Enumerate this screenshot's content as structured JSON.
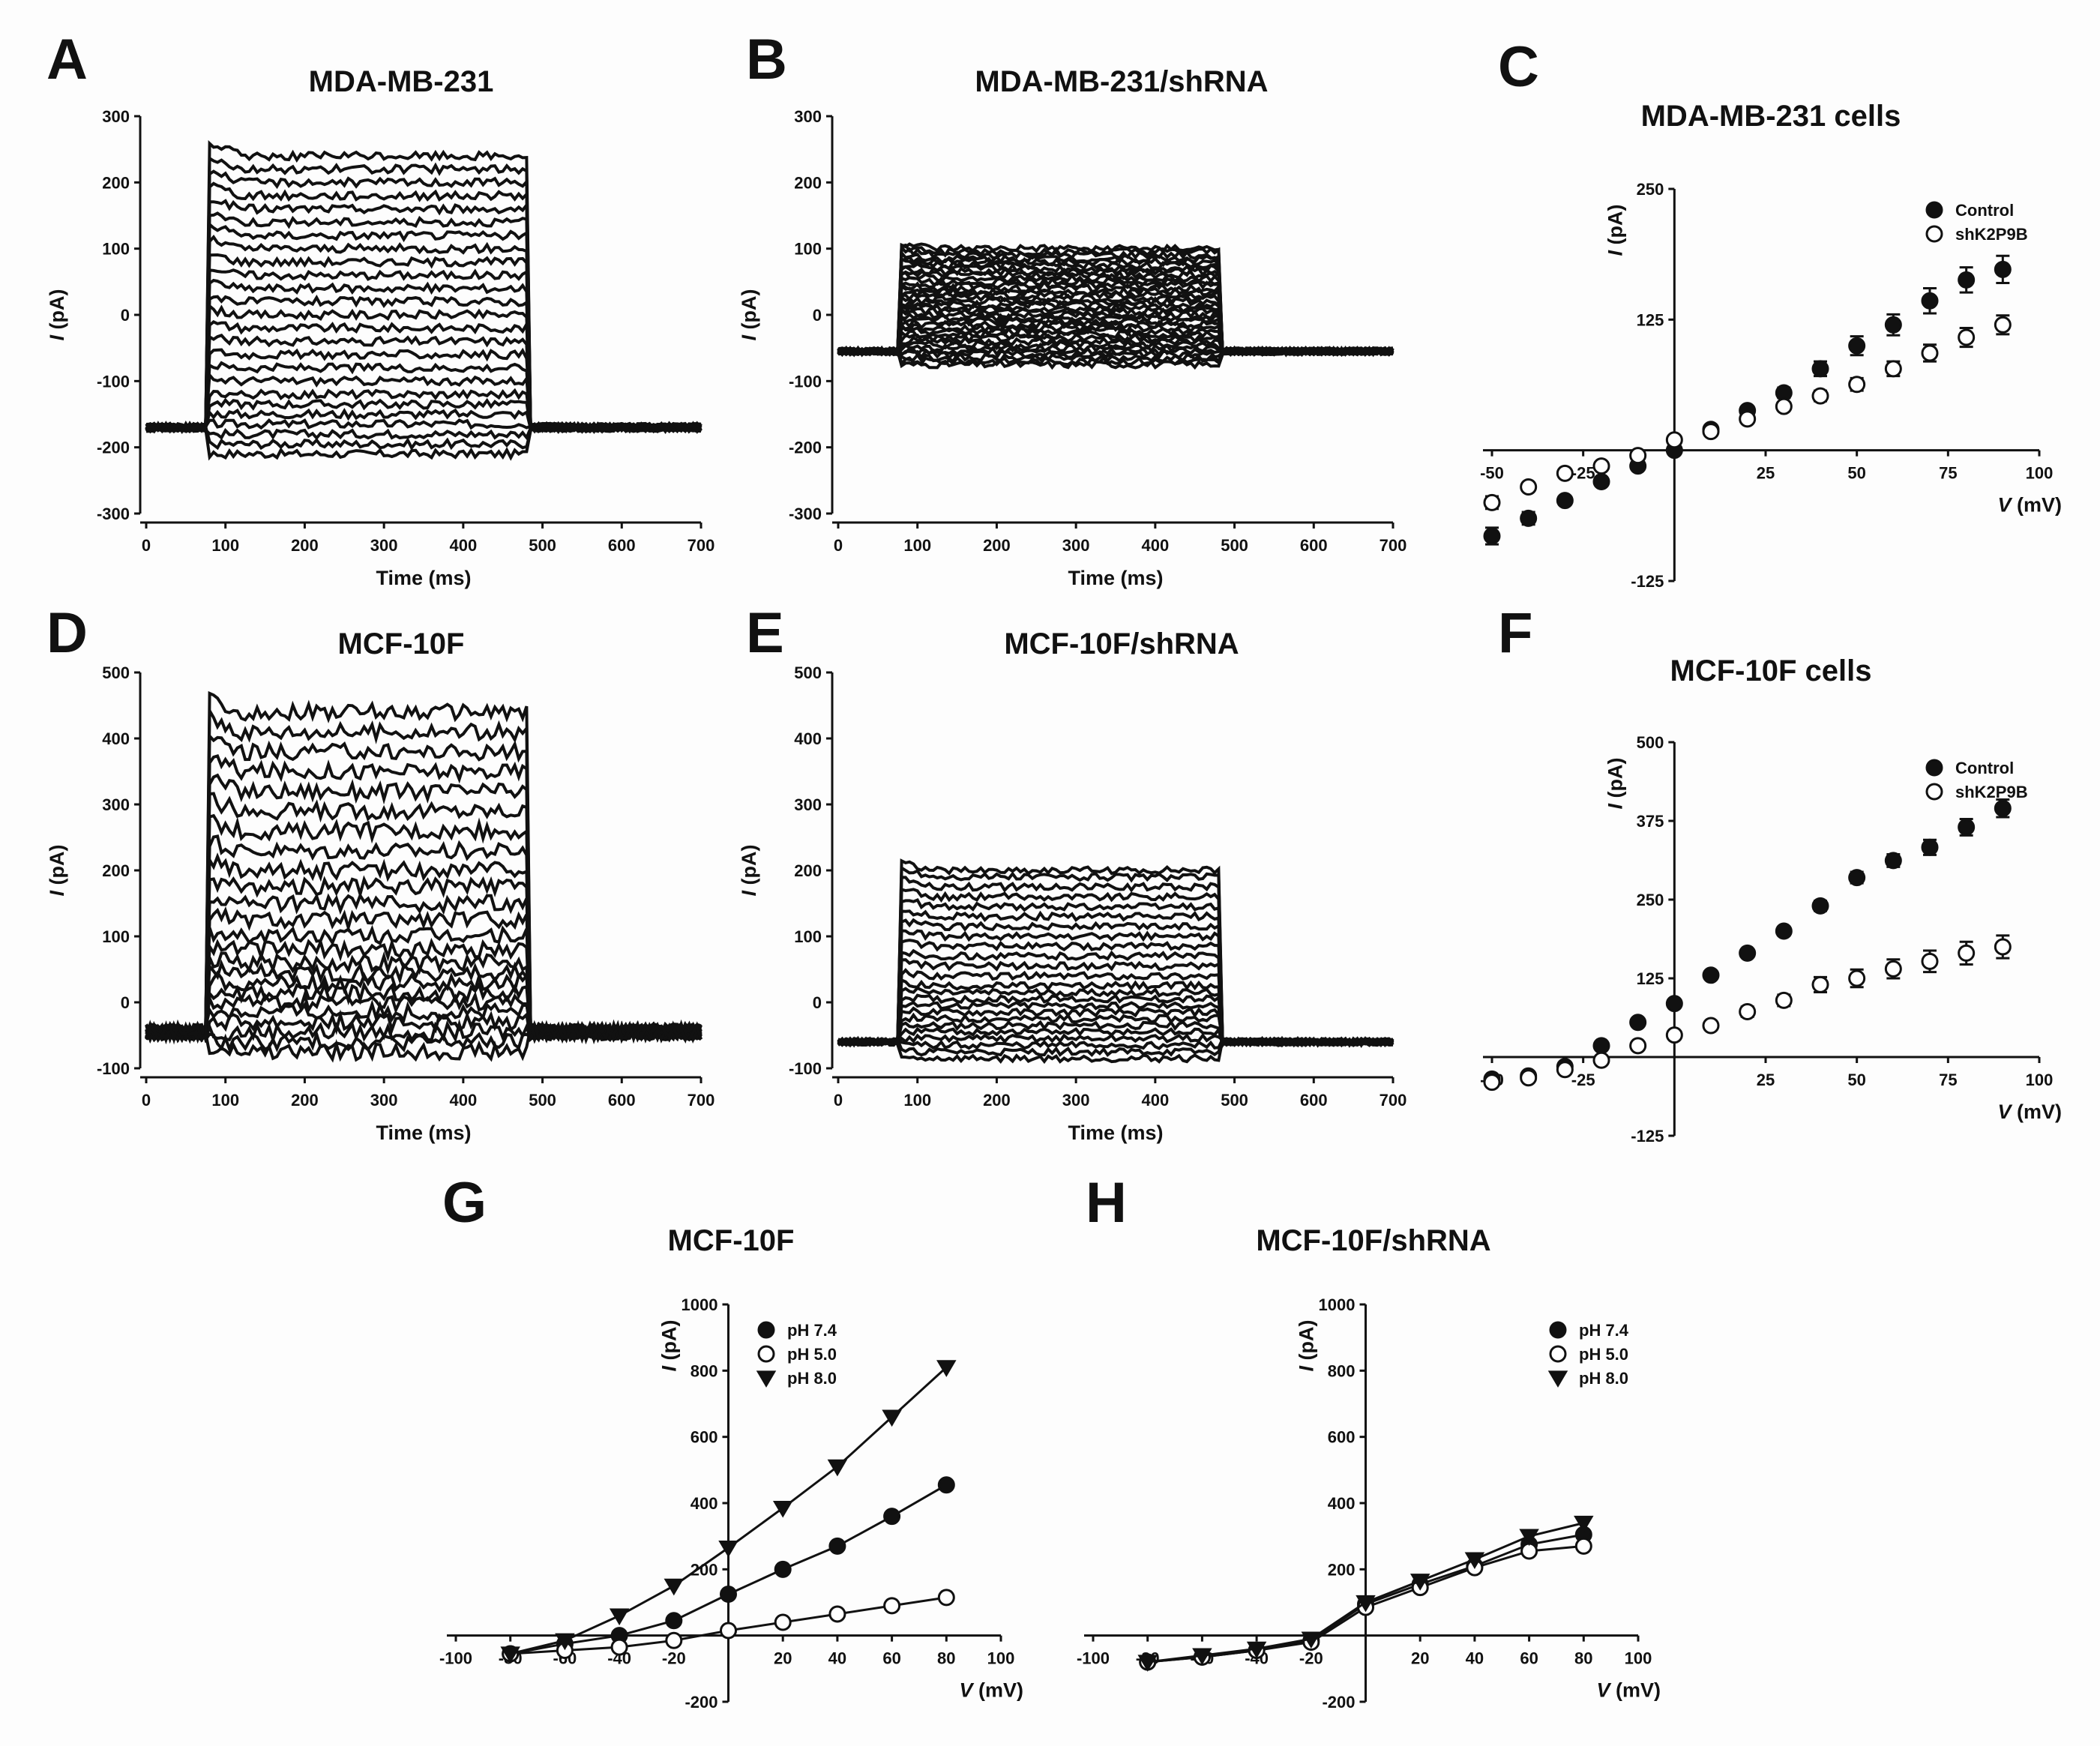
{
  "panel_labels": [
    "A",
    "B",
    "C",
    "D",
    "E",
    "F",
    "G",
    "H"
  ],
  "chart_data": [
    {
      "id": "A",
      "type": "line",
      "title": "MDA-MB-231",
      "xlabel": "Time (ms)",
      "ylabel_var": "I",
      "ylabel_unit": "(pA)",
      "xlim": [
        0,
        700
      ],
      "ylim": [
        -300,
        300
      ],
      "xticks": [
        "0",
        "100",
        "200",
        "300",
        "400",
        "500",
        "600",
        "700"
      ],
      "yticks": [
        "-300",
        "-200",
        "-100",
        "0",
        "100",
        "200",
        "300"
      ],
      "pulse_ms": [
        80,
        480
      ],
      "holding_pA": -170,
      "step_currents_pA": [
        -210,
        -195,
        -180,
        -165,
        -150,
        -135,
        -120,
        -100,
        -80,
        -60,
        -40,
        -20,
        0,
        20,
        40,
        60,
        80,
        100,
        120,
        140,
        160,
        180,
        200,
        220,
        240
      ],
      "noise_pA": 6
    },
    {
      "id": "B",
      "type": "line",
      "title": "MDA-MB-231/shRNA",
      "xlabel": "Time (ms)",
      "ylabel_var": "I",
      "ylabel_unit": "(pA)",
      "xlim": [
        0,
        700
      ],
      "ylim": [
        -300,
        300
      ],
      "xticks": [
        "0",
        "100",
        "200",
        "300",
        "400",
        "500",
        "600",
        "700"
      ],
      "yticks": [
        "-300",
        "-200",
        "-100",
        "0",
        "100",
        "200",
        "300"
      ],
      "pulse_ms": [
        80,
        480
      ],
      "holding_pA": -55,
      "step_currents_pA": [
        -75,
        -70,
        -65,
        -60,
        -55,
        -50,
        -45,
        -40,
        -35,
        -30,
        -25,
        -20,
        -15,
        -10,
        -5,
        0,
        5,
        10,
        15,
        20,
        25,
        30,
        35,
        40,
        45,
        50,
        55,
        60,
        65,
        70,
        75,
        80,
        85,
        90,
        95,
        100
      ],
      "noise_pA": 5
    },
    {
      "id": "C",
      "type": "scatter",
      "title": "MDA-MB-231 cells",
      "xlabel_var": "V",
      "xlabel_unit": "(mV)",
      "ylabel_var": "I",
      "ylabel_unit": "(pA)",
      "xlim": [
        -50,
        100
      ],
      "ylim": [
        -125,
        250
      ],
      "xticks": [
        "-50",
        "-25",
        "25",
        "50",
        "75",
        "100"
      ],
      "yticks": [
        "-125",
        "125",
        "250"
      ],
      "x": [
        -50,
        -40,
        -30,
        -20,
        -10,
        0,
        10,
        20,
        30,
        40,
        50,
        60,
        70,
        80,
        90
      ],
      "series": [
        {
          "name": "Control",
          "marker": "filled-circle",
          "values": [
            -82,
            -65,
            -48,
            -30,
            -15,
            0,
            20,
            38,
            55,
            78,
            100,
            120,
            143,
            163,
            173
          ],
          "errors": [
            8,
            6,
            4,
            3,
            2,
            0,
            3,
            4,
            5,
            7,
            9,
            10,
            12,
            12,
            13
          ]
        },
        {
          "name": "shK2P9B",
          "marker": "open-circle",
          "values": [
            -50,
            -35,
            -22,
            -15,
            -5,
            10,
            18,
            30,
            42,
            52,
            63,
            78,
            93,
            108,
            120
          ],
          "errors": [
            6,
            4,
            3,
            2,
            2,
            0,
            3,
            4,
            4,
            5,
            6,
            7,
            8,
            9,
            9
          ]
        }
      ]
    },
    {
      "id": "D",
      "type": "line",
      "title": "MCF-10F",
      "xlabel": "Time (ms)",
      "ylabel_var": "I",
      "ylabel_unit": "(pA)",
      "xlim": [
        0,
        700
      ],
      "ylim": [
        -100,
        500
      ],
      "xticks": [
        "0",
        "100",
        "200",
        "300",
        "400",
        "500",
        "600",
        "700"
      ],
      "yticks": [
        "-100",
        "0",
        "100",
        "200",
        "300",
        "400",
        "500"
      ],
      "pulse_ms": [
        80,
        480
      ],
      "holding_pA": -45,
      "step_currents_pA": [
        -75,
        -60,
        -45,
        -30,
        -15,
        0,
        15,
        30,
        45,
        60,
        80,
        100,
        125,
        150,
        175,
        200,
        230,
        260,
        290,
        320,
        350,
        380,
        410,
        440
      ],
      "noise_pA": 12
    },
    {
      "id": "E",
      "type": "line",
      "title": "MCF-10F/shRNA",
      "xlabel": "Time (ms)",
      "ylabel_var": "I",
      "ylabel_unit": "(pA)",
      "xlim": [
        0,
        700
      ],
      "ylim": [
        -100,
        500
      ],
      "xticks": [
        "0",
        "100",
        "200",
        "300",
        "400",
        "500",
        "600",
        "700"
      ],
      "yticks": [
        "-100",
        "0",
        "100",
        "200",
        "300",
        "400",
        "500"
      ],
      "pulse_ms": [
        80,
        480
      ],
      "holding_pA": -60,
      "step_currents_pA": [
        -85,
        -75,
        -65,
        -55,
        -45,
        -35,
        -25,
        -15,
        -5,
        5,
        15,
        25,
        40,
        55,
        70,
        85,
        100,
        115,
        130,
        145,
        160,
        175,
        190,
        200
      ],
      "noise_pA": 5
    },
    {
      "id": "F",
      "type": "scatter",
      "title": "MCF-10F cells",
      "xlabel_var": "V",
      "xlabel_unit": "(mV)",
      "ylabel_var": "I",
      "ylabel_unit": "(pA)",
      "xlim": [
        -50,
        100
      ],
      "ylim": [
        -125,
        500
      ],
      "xticks": [
        "-50",
        "-25",
        "25",
        "50",
        "75",
        "100"
      ],
      "yticks": [
        "-125",
        "125",
        "250",
        "375",
        "500"
      ],
      "x": [
        -50,
        -40,
        -30,
        -20,
        -10,
        0,
        10,
        20,
        30,
        40,
        50,
        60,
        70,
        80,
        90
      ],
      "series": [
        {
          "name": "Control",
          "marker": "filled-circle",
          "values": [
            -35,
            -30,
            -15,
            18,
            55,
            85,
            130,
            165,
            200,
            240,
            285,
            312,
            333,
            365,
            395
          ],
          "errors": [
            3,
            3,
            3,
            3,
            4,
            4,
            5,
            6,
            7,
            8,
            9,
            10,
            12,
            13,
            14
          ]
        },
        {
          "name": "shK2P9B",
          "marker": "open-circle",
          "values": [
            -40,
            -33,
            -20,
            -5,
            18,
            35,
            50,
            72,
            90,
            115,
            125,
            140,
            152,
            165,
            175
          ],
          "errors": [
            3,
            3,
            3,
            3,
            4,
            5,
            6,
            8,
            9,
            12,
            14,
            15,
            17,
            18,
            18
          ]
        }
      ]
    },
    {
      "id": "G",
      "type": "line",
      "title": "MCF-10F",
      "xlabel_var": "V",
      "xlabel_unit": "(mV)",
      "ylabel_var": "I",
      "ylabel_unit": "(pA)",
      "xlim": [
        -100,
        100
      ],
      "ylim": [
        -200,
        1000
      ],
      "xticks": [
        "-100",
        "-80",
        "-60",
        "-40",
        "-20",
        "20",
        "40",
        "60",
        "80",
        "100"
      ],
      "yticks": [
        "-200",
        "200",
        "400",
        "600",
        "800",
        "1000"
      ],
      "x": [
        -80,
        -60,
        -40,
        -20,
        0,
        20,
        40,
        60,
        80
      ],
      "series": [
        {
          "name": "pH 7.4",
          "marker": "filled-circle",
          "values": [
            -55,
            -25,
            0,
            45,
            125,
            200,
            270,
            360,
            455
          ]
        },
        {
          "name": "pH 5.0",
          "marker": "open-circle",
          "values": [
            -55,
            -45,
            -35,
            -15,
            15,
            40,
            65,
            90,
            115
          ]
        },
        {
          "name": "pH 8.0",
          "marker": "filled-triangle-down",
          "values": [
            -55,
            -15,
            60,
            150,
            265,
            385,
            510,
            660,
            810
          ]
        }
      ]
    },
    {
      "id": "H",
      "type": "line",
      "title": "MCF-10F/shRNA",
      "xlabel_var": "V",
      "xlabel_unit": "(mV)",
      "ylabel_var": "I",
      "ylabel_unit": "(pA)",
      "xlim": [
        -100,
        100
      ],
      "ylim": [
        -200,
        1000
      ],
      "xticks": [
        "-100",
        "-80",
        "-60",
        "-40",
        "-20",
        "20",
        "40",
        "60",
        "80",
        "100"
      ],
      "yticks": [
        "-200",
        "200",
        "400",
        "600",
        "800",
        "1000"
      ],
      "x": [
        -80,
        -60,
        -40,
        -20,
        0,
        20,
        40,
        60,
        80
      ],
      "series": [
        {
          "name": "pH 7.4",
          "marker": "filled-circle",
          "values": [
            -80,
            -65,
            -45,
            -15,
            95,
            155,
            210,
            275,
            305
          ]
        },
        {
          "name": "pH 5.0",
          "marker": "open-circle",
          "values": [
            -80,
            -65,
            -45,
            -20,
            85,
            145,
            205,
            255,
            270
          ]
        },
        {
          "name": "pH 8.0",
          "marker": "filled-triangle-down",
          "values": [
            -80,
            -60,
            -40,
            -10,
            100,
            165,
            230,
            300,
            340
          ]
        }
      ]
    }
  ]
}
